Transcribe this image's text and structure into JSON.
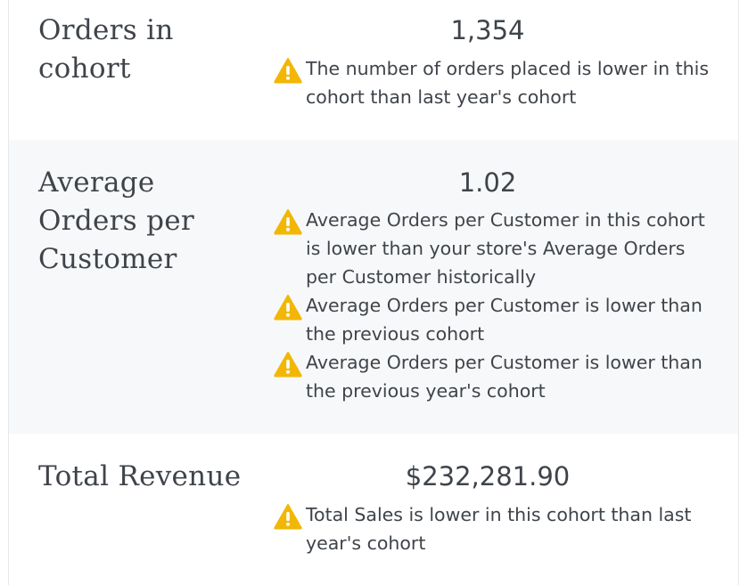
{
  "rows": [
    {
      "label": "Orders in cohort",
      "value": "1,354",
      "notes": [
        "The number of orders placed is lower in this cohort than last year's cohort"
      ]
    },
    {
      "label": "Average Orders per Customer",
      "value": "1.02",
      "notes": [
        "Average Orders per Customer in this cohort is lower than your store's Average Orders per Customer historically",
        "Average Orders per Customer is lower than the previous cohort",
        "Average Orders per Customer is lower than the previous year's cohort"
      ]
    },
    {
      "label": "Total Revenue",
      "value": "$232,281.90",
      "notes": [
        "Total Sales is lower in this cohort than last year's cohort"
      ]
    }
  ],
  "icons": {
    "warning": "warning-icon"
  },
  "colors": {
    "warning": "#f2b705",
    "alt_row_bg": "#f7f8f9",
    "text": "#3f444a"
  }
}
